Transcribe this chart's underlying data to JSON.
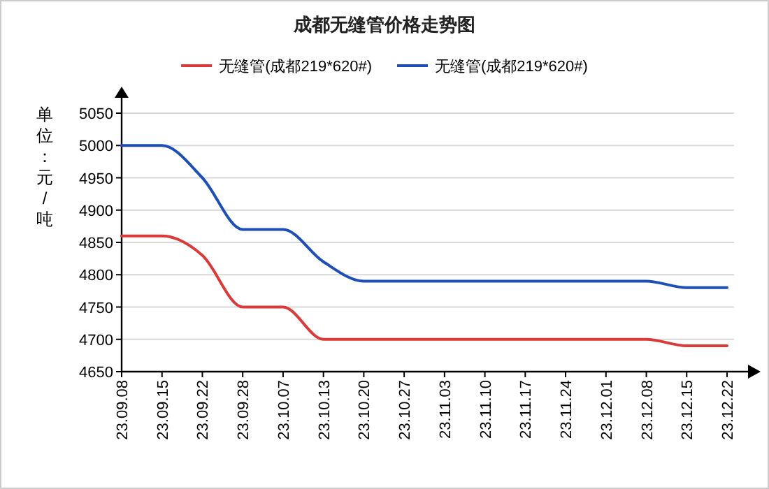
{
  "chart_data": {
    "type": "line",
    "title": "成都无缝管价格走势图",
    "ylabel": "单位：元/吨",
    "categories": [
      "23.09.08",
      "23.09.15",
      "23.09.22",
      "23.09.28",
      "23.10.07",
      "23.10.13",
      "23.10.20",
      "23.10.27",
      "23.11.03",
      "23.11.10",
      "23.11.17",
      "23.11.24",
      "23.12.01",
      "23.12.08",
      "23.12.15",
      "23.12.22"
    ],
    "series": [
      {
        "name": "无缝管(成都219*620#)",
        "color": "#d93a3a",
        "values": [
          4860,
          4860,
          4830,
          4750,
          4750,
          4700,
          4700,
          4700,
          4700,
          4700,
          4700,
          4700,
          4700,
          4700,
          4690,
          4690
        ]
      },
      {
        "name": "无缝管(成都219*620#)",
        "color": "#1f4fb4",
        "values": [
          5000,
          5000,
          4950,
          4870,
          4870,
          4820,
          4790,
          4790,
          4790,
          4790,
          4790,
          4790,
          4790,
          4790,
          4780,
          4780
        ]
      }
    ],
    "ylim": [
      4650,
      5050
    ],
    "yticks": [
      4650,
      4700,
      4750,
      4800,
      4850,
      4900,
      4950,
      5000,
      5050
    ],
    "grid": "y",
    "legend": "top",
    "marker": "none",
    "line_style": "solid"
  }
}
